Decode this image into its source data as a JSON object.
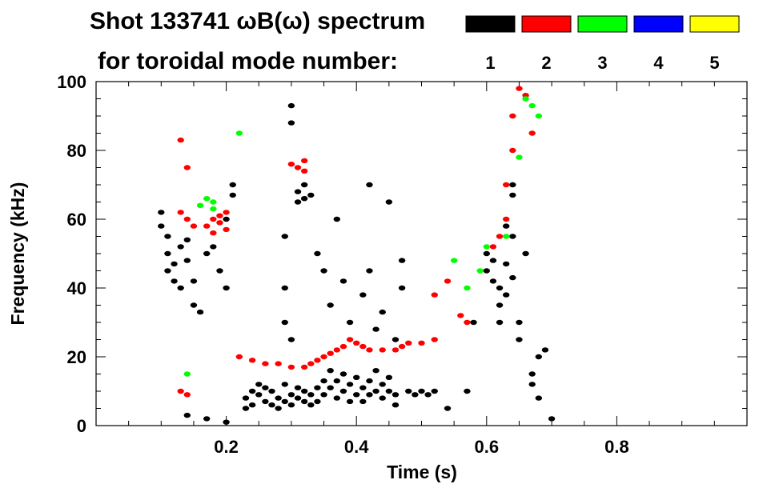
{
  "chart_data": {
    "type": "scatter",
    "title": "Shot 133741 ωB(ω) spectrum",
    "subtitle": "for toroidal mode number:",
    "xlabel": "Time (s)",
    "ylabel": "Frequency (kHz)",
    "xlim": [
      0.0,
      1.0
    ],
    "ylim": [
      0,
      100
    ],
    "xticks": [
      0.2,
      0.4,
      0.6,
      0.8
    ],
    "xtick_labels": [
      "0.2",
      "0.4",
      "0.6",
      "0.8"
    ],
    "yticks": [
      0,
      20,
      40,
      60,
      80,
      100
    ],
    "ytick_labels": [
      "0",
      "20",
      "40",
      "60",
      "80",
      "100"
    ],
    "grid": false,
    "legend_position": "top-right",
    "legend": [
      {
        "label": "1",
        "color": "#000000"
      },
      {
        "label": "2",
        "color": "#ff0000"
      },
      {
        "label": "3",
        "color": "#00ff00"
      },
      {
        "label": "4",
        "color": "#0000ff"
      },
      {
        "label": "5",
        "color": "#ffff00"
      }
    ],
    "series": [
      {
        "name": "1",
        "color": "#000000",
        "points": [
          [
            0.1,
            62
          ],
          [
            0.1,
            58
          ],
          [
            0.11,
            55
          ],
          [
            0.11,
            50
          ],
          [
            0.11,
            45
          ],
          [
            0.12,
            42
          ],
          [
            0.12,
            47
          ],
          [
            0.13,
            40
          ],
          [
            0.13,
            52
          ],
          [
            0.14,
            54
          ],
          [
            0.14,
            48
          ],
          [
            0.15,
            42
          ],
          [
            0.15,
            35
          ],
          [
            0.16,
            33
          ],
          [
            0.17,
            50
          ],
          [
            0.18,
            52
          ],
          [
            0.19,
            45
          ],
          [
            0.2,
            60
          ],
          [
            0.2,
            40
          ],
          [
            0.21,
            70
          ],
          [
            0.21,
            67
          ],
          [
            0.14,
            3
          ],
          [
            0.17,
            2
          ],
          [
            0.2,
            1
          ],
          [
            0.23,
            5
          ],
          [
            0.23,
            8
          ],
          [
            0.24,
            10
          ],
          [
            0.24,
            6
          ],
          [
            0.25,
            12
          ],
          [
            0.25,
            9
          ],
          [
            0.26,
            7
          ],
          [
            0.26,
            11
          ],
          [
            0.27,
            6
          ],
          [
            0.27,
            10
          ],
          [
            0.28,
            8
          ],
          [
            0.28,
            5
          ],
          [
            0.29,
            12
          ],
          [
            0.29,
            7
          ],
          [
            0.3,
            9
          ],
          [
            0.3,
            6
          ],
          [
            0.31,
            11
          ],
          [
            0.31,
            8
          ],
          [
            0.32,
            7
          ],
          [
            0.32,
            10
          ],
          [
            0.33,
            6
          ],
          [
            0.33,
            9
          ],
          [
            0.34,
            11
          ],
          [
            0.34,
            7
          ],
          [
            0.35,
            13
          ],
          [
            0.35,
            9
          ],
          [
            0.36,
            16
          ],
          [
            0.36,
            11
          ],
          [
            0.37,
            8
          ],
          [
            0.37,
            13
          ],
          [
            0.38,
            15
          ],
          [
            0.38,
            10
          ],
          [
            0.39,
            7
          ],
          [
            0.39,
            12
          ],
          [
            0.4,
            14
          ],
          [
            0.4,
            9
          ],
          [
            0.41,
            11
          ],
          [
            0.41,
            7
          ],
          [
            0.42,
            13
          ],
          [
            0.42,
            9
          ],
          [
            0.43,
            16
          ],
          [
            0.43,
            10
          ],
          [
            0.44,
            8
          ],
          [
            0.44,
            12
          ],
          [
            0.45,
            10
          ],
          [
            0.45,
            14
          ],
          [
            0.46,
            9
          ],
          [
            0.46,
            6
          ],
          [
            0.48,
            10
          ],
          [
            0.49,
            9
          ],
          [
            0.5,
            10
          ],
          [
            0.51,
            9
          ],
          [
            0.52,
            10
          ],
          [
            0.31,
            68
          ],
          [
            0.31,
            65
          ],
          [
            0.32,
            70
          ],
          [
            0.32,
            66
          ],
          [
            0.33,
            67
          ],
          [
            0.3,
            93
          ],
          [
            0.3,
            88
          ],
          [
            0.29,
            55
          ],
          [
            0.29,
            40
          ],
          [
            0.29,
            30
          ],
          [
            0.3,
            25
          ],
          [
            0.34,
            50
          ],
          [
            0.35,
            45
          ],
          [
            0.36,
            35
          ],
          [
            0.37,
            60
          ],
          [
            0.38,
            42
          ],
          [
            0.39,
            30
          ],
          [
            0.41,
            38
          ],
          [
            0.42,
            70
          ],
          [
            0.42,
            45
          ],
          [
            0.43,
            28
          ],
          [
            0.44,
            33
          ],
          [
            0.45,
            65
          ],
          [
            0.46,
            25
          ],
          [
            0.47,
            48
          ],
          [
            0.47,
            40
          ],
          [
            0.6,
            50
          ],
          [
            0.6,
            45
          ],
          [
            0.61,
            42
          ],
          [
            0.61,
            48
          ],
          [
            0.62,
            40
          ],
          [
            0.62,
            35
          ],
          [
            0.62,
            30
          ],
          [
            0.63,
            47
          ],
          [
            0.63,
            38
          ],
          [
            0.63,
            58
          ],
          [
            0.64,
            55
          ],
          [
            0.64,
            43
          ],
          [
            0.64,
            70
          ],
          [
            0.64,
            67
          ],
          [
            0.65,
            25
          ],
          [
            0.65,
            30
          ],
          [
            0.66,
            50
          ],
          [
            0.67,
            15
          ],
          [
            0.67,
            12
          ],
          [
            0.68,
            20
          ],
          [
            0.68,
            8
          ],
          [
            0.69,
            22
          ],
          [
            0.7,
            2
          ],
          [
            0.58,
            30
          ],
          [
            0.57,
            10
          ],
          [
            0.54,
            5
          ]
        ]
      },
      {
        "name": "2",
        "color": "#ff0000",
        "points": [
          [
            0.13,
            10
          ],
          [
            0.14,
            9
          ],
          [
            0.13,
            62
          ],
          [
            0.14,
            60
          ],
          [
            0.15,
            58
          ],
          [
            0.14,
            75
          ],
          [
            0.13,
            83
          ],
          [
            0.17,
            58
          ],
          [
            0.18,
            60
          ],
          [
            0.18,
            56
          ],
          [
            0.19,
            61
          ],
          [
            0.19,
            59
          ],
          [
            0.2,
            62
          ],
          [
            0.2,
            57
          ],
          [
            0.22,
            20
          ],
          [
            0.24,
            19
          ],
          [
            0.26,
            18
          ],
          [
            0.28,
            18
          ],
          [
            0.3,
            17
          ],
          [
            0.32,
            17
          ],
          [
            0.33,
            18
          ],
          [
            0.34,
            19
          ],
          [
            0.35,
            20
          ],
          [
            0.36,
            21
          ],
          [
            0.37,
            22
          ],
          [
            0.38,
            23
          ],
          [
            0.39,
            25
          ],
          [
            0.4,
            24
          ],
          [
            0.41,
            23
          ],
          [
            0.42,
            22
          ],
          [
            0.44,
            22
          ],
          [
            0.46,
            22
          ],
          [
            0.47,
            23
          ],
          [
            0.48,
            24
          ],
          [
            0.5,
            24
          ],
          [
            0.52,
            25
          ],
          [
            0.3,
            76
          ],
          [
            0.31,
            75
          ],
          [
            0.32,
            74
          ],
          [
            0.32,
            77
          ],
          [
            0.52,
            38
          ],
          [
            0.54,
            42
          ],
          [
            0.56,
            32
          ],
          [
            0.57,
            30
          ],
          [
            0.61,
            52
          ],
          [
            0.62,
            55
          ],
          [
            0.63,
            60
          ],
          [
            0.63,
            70
          ],
          [
            0.64,
            80
          ],
          [
            0.64,
            90
          ],
          [
            0.65,
            98
          ],
          [
            0.66,
            96
          ],
          [
            0.67,
            85
          ]
        ]
      },
      {
        "name": "3",
        "color": "#00ff00",
        "points": [
          [
            0.14,
            15
          ],
          [
            0.16,
            64
          ],
          [
            0.17,
            66
          ],
          [
            0.18,
            65
          ],
          [
            0.18,
            63
          ],
          [
            0.22,
            85
          ],
          [
            0.55,
            48
          ],
          [
            0.57,
            40
          ],
          [
            0.59,
            45
          ],
          [
            0.6,
            52
          ],
          [
            0.63,
            55
          ],
          [
            0.65,
            78
          ],
          [
            0.66,
            95
          ],
          [
            0.67,
            93
          ],
          [
            0.68,
            90
          ]
        ]
      },
      {
        "name": "4",
        "color": "#0000ff",
        "points": []
      },
      {
        "name": "5",
        "color": "#ffff00",
        "points": []
      }
    ]
  }
}
